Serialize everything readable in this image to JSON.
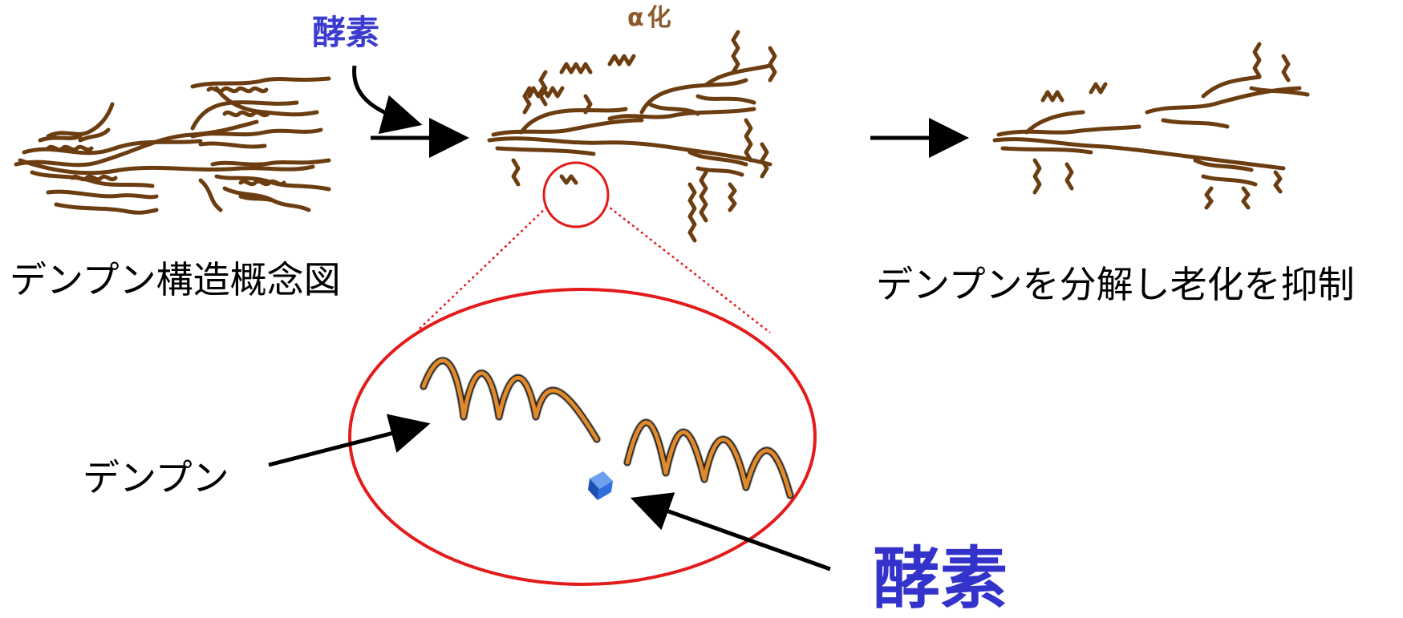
{
  "labels": {
    "enzyme_top": "酵素",
    "alpha": "α化",
    "structure_caption": "デンプン構造概念図",
    "result_caption": "デンプンを分解し老化を抑制",
    "starch_pointer": "デンプン",
    "enzyme_pointer": "酵素"
  },
  "colors": {
    "starch_brown": "#6b3d10",
    "arrow_black": "#000000",
    "zoom_red": "#e31b1b",
    "enzyme_blue": "#3333cc",
    "alpha_brown": "#8a5a2b",
    "strand_orange": "#e08a2c",
    "enzyme_cube": "#2f6fe0"
  },
  "icons": {
    "enzyme_cube": "blue-cube-icon"
  }
}
